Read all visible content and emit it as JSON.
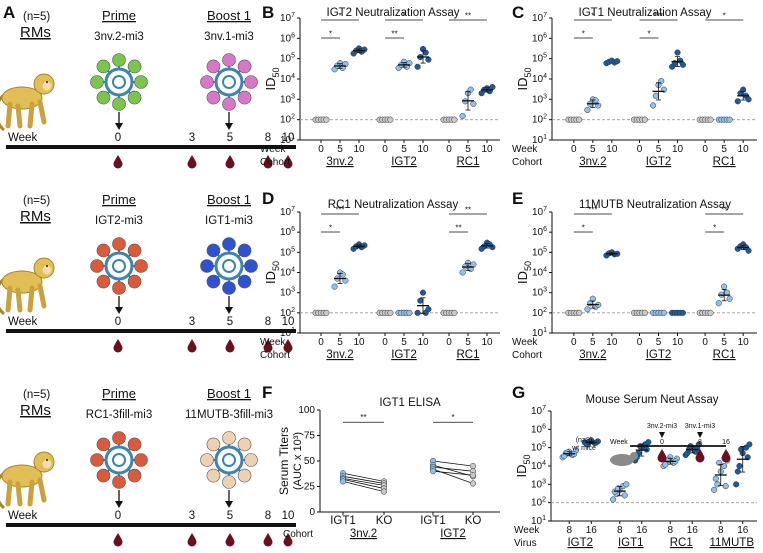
{
  "panel_letters": {
    "A": "A",
    "B": "B",
    "C": "C",
    "D": "D",
    "E": "E",
    "F": "F",
    "G": "G"
  },
  "colors": {
    "light": "#8fc1ee",
    "dark": "#1c5a9e",
    "gray": "#c9c9c9",
    "ref": "#9a9a9a",
    "blood": "#6b1020",
    "nano": "#3d85b0",
    "monkey": "#e2bf56",
    "monkeyDark": "#a8842b",
    "green": "#7ac64c",
    "pink": "#d877c8",
    "red": "#dc5a3c",
    "blue": "#2e52d2",
    "beige": "#efd0b2"
  },
  "schedule": {
    "cohorts": [
      {
        "n": "(n=5)",
        "animal": "RMs",
        "prime_title": "Prime",
        "prime": "3nv.2-mi3",
        "boost_title": "Boost 1",
        "boost": "3nv.1-mi3",
        "prime_color": "green",
        "boost_color": "pink"
      },
      {
        "n": "(n=5)",
        "animal": "RMs",
        "prime_title": "Prime",
        "prime": "IGT2-mi3",
        "boost_title": "Boost 1",
        "boost": "IGT1-mi3",
        "prime_color": "red",
        "boost_color": "blue"
      },
      {
        "n": "(n=5)",
        "animal": "RMs",
        "prime_title": "Prime",
        "prime": "RC1-3fill-mi3",
        "boost_title": "Boost 1",
        "boost": "11MUTB-3fill-mi3",
        "prime_color": "red",
        "boost_color": "beige"
      }
    ],
    "week_label": "Week",
    "weeks": [
      "0",
      "3",
      "5",
      "8",
      "10"
    ]
  },
  "chart_data": [
    {
      "type": "scatter",
      "title": "IGT2 Neutralization Assay",
      "ylabel": "ID50",
      "ylim": [
        10,
        10000000
      ],
      "row_labels": [
        "Week",
        "Cohort"
      ],
      "groups": [
        {
          "cohort": "3nv.2",
          "weeks": [
            "0",
            "5",
            "10"
          ],
          "values": [
            [
              100,
              100,
              100,
              100,
              100
            ],
            [
              30000,
              45000,
              60000,
              35000,
              55000
            ],
            [
              180000,
              250000,
              320000,
              220000,
              280000
            ]
          ]
        },
        {
          "cohort": "IGT2",
          "weeks": [
            "0",
            "5",
            "10"
          ],
          "values": [
            [
              100,
              100,
              100,
              100,
              100
            ],
            [
              35000,
              50000,
              70000,
              40000,
              60000
            ],
            [
              40000,
              120000,
              300000,
              200000,
              90000
            ]
          ]
        },
        {
          "cohort": "RC1",
          "weeks": [
            "0",
            "5",
            "10"
          ],
          "values": [
            [
              100,
              100,
              100,
              100,
              100
            ],
            [
              150,
              800,
              2000,
              3000,
              600
            ],
            [
              2000,
              3000,
              3500,
              2500,
              4000
            ]
          ]
        }
      ],
      "significance": [
        {
          "label": "*",
          "group": 0,
          "from": 0,
          "to": 2
        },
        {
          "label": "*",
          "group": 0,
          "from": 0,
          "to": 1
        },
        {
          "label": "*",
          "group": 1,
          "from": 0,
          "to": 2
        },
        {
          "label": "**",
          "group": 1,
          "from": 0,
          "to": 1
        },
        {
          "label": "**",
          "group": 2,
          "from": 0,
          "to": 2
        }
      ]
    },
    {
      "type": "scatter",
      "title": "IGT1 Neutralization Assay",
      "ylabel": "ID50",
      "ylim": [
        10,
        10000000
      ],
      "row_labels": [
        "Week",
        "Cohort"
      ],
      "groups": [
        {
          "cohort": "3nv.2",
          "weeks": [
            "0",
            "5",
            "10"
          ],
          "values": [
            [
              100,
              100,
              100,
              100,
              100
            ],
            [
              300,
              600,
              1000,
              900,
              500
            ],
            [
              60000,
              70000,
              80000,
              65000,
              75000
            ]
          ]
        },
        {
          "cohort": "IGT2",
          "weeks": [
            "0",
            "5",
            "10"
          ],
          "values": [
            [
              100,
              100,
              100,
              100,
              100
            ],
            [
              500,
              1500,
              5000,
              8000,
              3000
            ],
            [
              40000,
              60000,
              200000,
              80000,
              50000
            ]
          ]
        },
        {
          "cohort": "RC1",
          "weeks": [
            "0",
            "5",
            "10"
          ],
          "values": [
            [
              100,
              100,
              100,
              100,
              100
            ],
            [
              100,
              100,
              100,
              100,
              100
            ],
            [
              800,
              2000,
              3000,
              1500,
              1000
            ]
          ]
        }
      ],
      "significance": [
        {
          "label": "*",
          "group": 0,
          "from": 0,
          "to": 2
        },
        {
          "label": "*",
          "group": 0,
          "from": 0,
          "to": 1
        },
        {
          "label": "***",
          "group": 1,
          "from": 0,
          "to": 2
        },
        {
          "label": "*",
          "group": 1,
          "from": 0,
          "to": 1
        },
        {
          "label": "*",
          "group": 2,
          "from": 0,
          "to": 2
        }
      ]
    },
    {
      "type": "scatter",
      "title": "RC1 Neutralization Assay",
      "ylabel": "ID50",
      "ylim": [
        10,
        10000000
      ],
      "row_labels": [
        "Week",
        "Cohort"
      ],
      "groups": [
        {
          "cohort": "3nv.2",
          "weeks": [
            "0",
            "5",
            "10"
          ],
          "values": [
            [
              100,
              100,
              100,
              100,
              100
            ],
            [
              2000,
              5000,
              10000,
              8000,
              4000
            ],
            [
              150000,
              200000,
              250000,
              180000,
              220000
            ]
          ]
        },
        {
          "cohort": "IGT2",
          "weeks": [
            "0",
            "5",
            "10"
          ],
          "values": [
            [
              100,
              100,
              100,
              100,
              100
            ],
            [
              100,
              100,
              100,
              100,
              100
            ],
            [
              100,
              400,
              1000,
              100,
              150
            ]
          ]
        },
        {
          "cohort": "RC1",
          "weeks": [
            "0",
            "5",
            "10"
          ],
          "values": [
            [
              100,
              100,
              100,
              100,
              100
            ],
            [
              10000,
              20000,
              30000,
              15000,
              25000
            ],
            [
              150000,
              200000,
              300000,
              250000,
              180000
            ]
          ]
        }
      ],
      "significance": [
        {
          "label": "***",
          "group": 0,
          "from": 0,
          "to": 2
        },
        {
          "label": "*",
          "group": 0,
          "from": 0,
          "to": 1
        },
        {
          "label": "**",
          "group": 2,
          "from": 0,
          "to": 2
        },
        {
          "label": "**",
          "group": 2,
          "from": 0,
          "to": 1
        }
      ]
    },
    {
      "type": "scatter",
      "title": "11MUTB Neutralization Assay",
      "ylabel": "ID50",
      "ylim": [
        10,
        10000000
      ],
      "row_labels": [
        "Week",
        "Cohort"
      ],
      "groups": [
        {
          "cohort": "3nv.2",
          "weeks": [
            "0",
            "5",
            "10"
          ],
          "values": [
            [
              100,
              100,
              100,
              100,
              100
            ],
            [
              150,
              300,
              500,
              200,
              250
            ],
            [
              70000,
              90000,
              100000,
              80000,
              85000
            ]
          ]
        },
        {
          "cohort": "IGT2",
          "weeks": [
            "0",
            "5",
            "10"
          ],
          "values": [
            [
              100,
              100,
              100,
              100,
              100
            ],
            [
              100,
              100,
              100,
              100,
              100
            ],
            [
              100,
              100,
              100,
              100,
              100
            ]
          ]
        },
        {
          "cohort": "RC1",
          "weeks": [
            "0",
            "5",
            "10"
          ],
          "values": [
            [
              100,
              100,
              100,
              100,
              100
            ],
            [
              300,
              800,
              2000,
              1000,
              500
            ],
            [
              150000,
              200000,
              250000,
              180000,
              120000
            ]
          ]
        }
      ],
      "significance": [
        {
          "label": "***",
          "group": 0,
          "from": 0,
          "to": 2
        },
        {
          "label": "*",
          "group": 0,
          "from": 0,
          "to": 1
        },
        {
          "label": "**",
          "group": 2,
          "from": 0,
          "to": 2
        },
        {
          "label": "*",
          "group": 2,
          "from": 0,
          "to": 1
        }
      ]
    },
    {
      "type": "line",
      "title": "IGT1 ELISA",
      "ylabel": "Serum Titers",
      "ylabel2": "(AUC x 10³)",
      "yticks": [
        "100",
        "75",
        "50",
        "25",
        "0"
      ],
      "ylim": [
        0,
        100
      ],
      "row_label": "Cohort",
      "groups": [
        {
          "cohort": "3nv.2",
          "x": [
            "IGT1",
            "KO"
          ],
          "pairs": [
            [
              38,
              30
            ],
            [
              35,
              28
            ],
            [
              33,
              26
            ],
            [
              32,
              23
            ],
            [
              30,
              20
            ]
          ],
          "sig": "**"
        },
        {
          "cohort": "IGT2",
          "x": [
            "IGT1",
            "KO"
          ],
          "pairs": [
            [
              50,
              45
            ],
            [
              46,
              35
            ],
            [
              44,
              40
            ],
            [
              42,
              28
            ],
            [
              40,
              36
            ]
          ],
          "sig": "*"
        }
      ]
    },
    {
      "type": "scatter",
      "title": "Mouse Serum Neut Assay",
      "ylabel": "ID50",
      "ylim": [
        10,
        10000000
      ],
      "row_labels": [
        "Week",
        "Virus"
      ],
      "annotation": "(n=8) wt mice",
      "inset": {
        "week_label": "Week",
        "points": [
          {
            "label": "0",
            "drug": "3nv.2-mi3"
          },
          {
            "label": "8",
            "drug": "3nv.1-mi3"
          },
          {
            "label": "16",
            "drug": ""
          }
        ]
      },
      "groups": [
        {
          "virus": "IGT2",
          "weeks": [
            "8",
            "16"
          ],
          "values": [
            [
              30000,
              50000,
              60000,
              40000,
              70000,
              35000,
              45000,
              55000
            ],
            [
              200000,
              150000,
              250000,
              180000,
              220000,
              160000,
              190000,
              210000
            ]
          ]
        },
        {
          "virus": "IGT1",
          "weeks": [
            "8",
            "16"
          ],
          "values": [
            [
              150,
              300,
              500,
              800,
              1000,
              400,
              250,
              600
            ],
            [
              20000,
              50000,
              100000,
              150000,
              200000,
              30000,
              80000,
              120000
            ]
          ]
        },
        {
          "virus": "RC1",
          "weeks": [
            "8",
            "16"
          ],
          "values": [
            [
              10000,
              20000,
              30000,
              15000,
              25000,
              12000,
              18000,
              22000
            ],
            [
              40000,
              80000,
              100000,
              60000,
              150000,
              50000,
              90000,
              120000
            ]
          ]
        },
        {
          "virus": "11MUTB",
          "weeks": [
            "8",
            "16"
          ],
          "values": [
            [
              500,
              1000,
              5000,
              10000,
              20000,
              2000,
              800,
              15000
            ],
            [
              1000,
              10000,
              50000,
              100000,
              150000,
              5000,
              30000,
              80000
            ]
          ]
        }
      ]
    }
  ]
}
